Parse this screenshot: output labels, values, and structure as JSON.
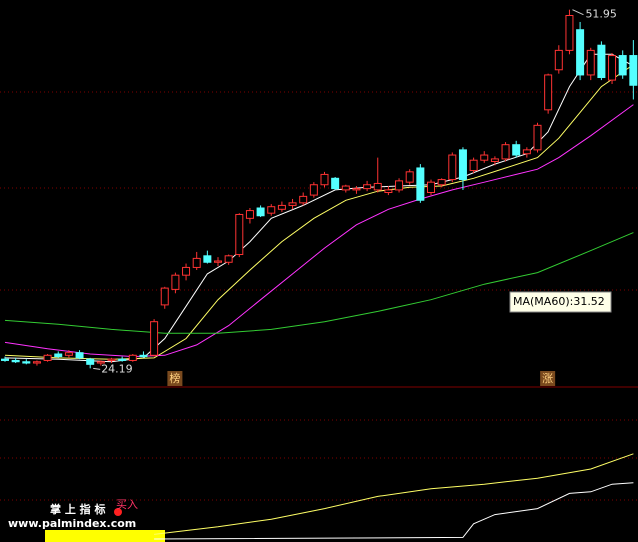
{
  "chart_data": [
    {
      "type": "candlestick",
      "ylim": [
        22.9,
        52.7
      ],
      "up_color": "#ff3333",
      "down_color": "#54ffff",
      "open": [
        24.9,
        24.8,
        24.7,
        24.6,
        24.8,
        25.3,
        25.2,
        25.4,
        24.9,
        24.6,
        24.8,
        24.9,
        24.8,
        25.2,
        25.2,
        29.1,
        30.3,
        31.4,
        32.0,
        32.9,
        32.4,
        32.4,
        33.0,
        35.8,
        36.6,
        36.2,
        36.5,
        36.8,
        37.0,
        37.6,
        38.4,
        38.9,
        38.0,
        38.0,
        38.1,
        38.0,
        37.8,
        38.0,
        38.6,
        39.7,
        37.8,
        38.4,
        38.8,
        41.1,
        39.5,
        40.3,
        40.2,
        40.4,
        41.5,
        40.8,
        41.1,
        44.2,
        47.3,
        48.8,
        50.4,
        46.9,
        49.2,
        46.5,
        48.4,
        48.4
      ],
      "high": [
        25.1,
        25.0,
        24.9,
        24.8,
        25.3,
        25.5,
        25.6,
        25.6,
        25.0,
        24.8,
        25.0,
        25.1,
        25.3,
        25.5,
        28.0,
        30.5,
        31.6,
        32.3,
        33.2,
        33.3,
        32.8,
        33.0,
        36.2,
        36.6,
        36.8,
        36.9,
        37.1,
        37.3,
        37.8,
        38.6,
        39.4,
        39.0,
        38.4,
        38.3,
        38.7,
        40.5,
        38.3,
        38.9,
        39.6,
        40.0,
        38.8,
        38.9,
        40.9,
        41.3,
        40.5,
        41.0,
        40.6,
        41.7,
        41.8,
        41.3,
        43.2,
        47.0,
        49.2,
        51.95,
        51.0,
        49.0,
        49.5,
        48.6,
        48.8,
        49.6
      ],
      "low": [
        24.7,
        24.6,
        24.5,
        24.4,
        24.7,
        25.0,
        25.0,
        24.9,
        24.19,
        24.4,
        24.6,
        24.7,
        24.7,
        25.0,
        25.1,
        28.8,
        30.0,
        31.0,
        31.8,
        32.3,
        32.1,
        32.2,
        32.8,
        35.4,
        35.9,
        36.0,
        36.3,
        36.5,
        36.8,
        37.4,
        38.2,
        38.0,
        37.8,
        37.7,
        37.9,
        37.8,
        37.6,
        37.8,
        38.4,
        37.0,
        37.6,
        38.2,
        38.6,
        38.0,
        39.3,
        40.1,
        39.9,
        40.2,
        40.5,
        40.5,
        40.9,
        43.9,
        47.0,
        48.5,
        46.5,
        46.5,
        46.5,
        46.2,
        46.6,
        45.0
      ],
      "close": [
        24.8,
        24.7,
        24.6,
        24.7,
        25.2,
        25.1,
        25.4,
        25.0,
        24.5,
        24.7,
        24.9,
        24.8,
        25.2,
        25.1,
        27.8,
        30.4,
        31.4,
        32.0,
        32.7,
        32.4,
        32.5,
        32.9,
        36.1,
        36.4,
        36.0,
        36.7,
        36.8,
        37.0,
        37.5,
        38.4,
        39.2,
        38.1,
        38.3,
        38.1,
        38.4,
        38.5,
        38.0,
        38.7,
        39.4,
        37.2,
        38.6,
        38.8,
        40.7,
        38.8,
        40.3,
        40.7,
        40.4,
        41.5,
        40.7,
        41.1,
        43.0,
        46.9,
        48.8,
        51.5,
        46.9,
        48.8,
        46.7,
        48.4,
        46.9,
        46.1
      ],
      "lines": [
        {
          "color": "#ffffff",
          "x": [
            0,
            5,
            10,
            13,
            15,
            17,
            19,
            21,
            23,
            25,
            28,
            31,
            34,
            37,
            40,
            43,
            46,
            49,
            51,
            53,
            55,
            57,
            59
          ],
          "values": [
            25.0,
            24.9,
            24.7,
            25.0,
            26.5,
            29.0,
            31.5,
            32.5,
            34.0,
            35.8,
            36.8,
            38.0,
            38.2,
            38.3,
            38.4,
            39.0,
            40.0,
            40.8,
            42.5,
            46.0,
            48.5,
            48.5,
            47.6
          ]
        },
        {
          "color": "#ffff66",
          "x": [
            0,
            5,
            10,
            14,
            17,
            20,
            23,
            26,
            29,
            32,
            35,
            38,
            41,
            44,
            47,
            50,
            52,
            54,
            56,
            59
          ],
          "values": [
            25.2,
            25.0,
            24.9,
            25.0,
            26.5,
            29.5,
            31.8,
            34.0,
            35.8,
            37.2,
            37.9,
            38.2,
            38.3,
            38.9,
            39.7,
            40.5,
            42.0,
            44.0,
            46.0,
            47.7
          ]
        },
        {
          "color": "#ff33ff",
          "x": [
            0,
            4,
            8,
            12,
            15,
            18,
            21,
            24,
            27,
            30,
            33,
            36,
            39,
            42,
            45,
            48,
            50,
            52,
            55,
            59
          ],
          "values": [
            26.2,
            25.7,
            25.3,
            25.1,
            25.2,
            26.0,
            27.5,
            29.5,
            31.5,
            33.5,
            35.3,
            36.5,
            37.3,
            38.0,
            38.6,
            39.2,
            39.6,
            40.5,
            42.2,
            44.6
          ]
        },
        {
          "color": "#33cc33",
          "x": [
            0,
            5,
            10,
            15,
            20,
            25,
            30,
            35,
            40,
            45,
            50,
            55,
            59
          ],
          "values": [
            27.9,
            27.6,
            27.2,
            26.9,
            26.9,
            27.2,
            27.8,
            28.6,
            29.5,
            30.7,
            31.6,
            33.3,
            34.7
          ]
        }
      ],
      "max_label": "51.95",
      "min_label": "24.19",
      "ma_label": "MA(MA60):31.52",
      "signals": [
        {
          "label": "榜",
          "x": 16
        },
        {
          "label": "涨",
          "x": 51
        }
      ]
    },
    {
      "type": "line",
      "ylim": [
        0,
        100
      ],
      "series": [
        {
          "color": "#ffff66",
          "x": [
            14,
            20,
            25,
            30,
            35,
            40,
            45,
            50,
            55,
            59
          ],
          "values": [
            5,
            10,
            15,
            22,
            30,
            35,
            38,
            42,
            48,
            58
          ]
        },
        {
          "color": "#ffffff",
          "x": [
            14,
            43,
            44,
            46,
            50,
            53,
            55,
            57,
            59
          ],
          "values": [
            2,
            3,
            12,
            18,
            22,
            32,
            33,
            38,
            39
          ]
        }
      ],
      "brand": "掌 上 指 标",
      "site": "www.palmindex.com",
      "buy": "买入"
    }
  ]
}
